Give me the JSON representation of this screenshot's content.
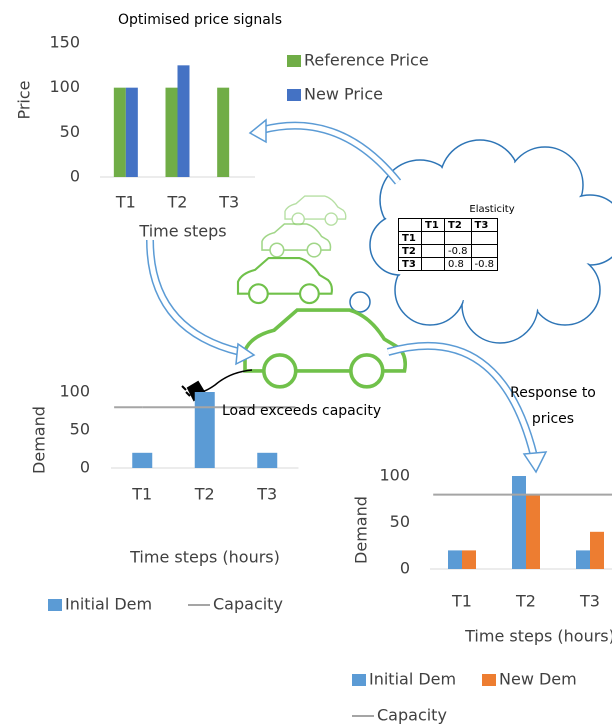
{
  "chart_data": [
    {
      "type": "bar",
      "title": "Optimised price signals",
      "y_label": "Price",
      "x_label": "Time steps",
      "categories": [
        "T1",
        "T2",
        "T3"
      ],
      "series": [
        {
          "name": "Reference Price",
          "color": "#70ad47",
          "values": [
            100,
            100,
            100
          ]
        },
        {
          "name": "New Price",
          "color": "#4472c4",
          "values": [
            100,
            125,
            null
          ]
        }
      ],
      "ylim": [
        0,
        150
      ],
      "yticks": [
        0,
        50,
        100,
        150
      ],
      "legend": "right"
    },
    {
      "type": "bar",
      "y_label": "Demand",
      "x_label": "Time steps (hours)",
      "categories": [
        "T1",
        "T2",
        "T3"
      ],
      "series": [
        {
          "name": "Initial Dem",
          "color": "#5b9bd5",
          "values": [
            20,
            100,
            20
          ]
        },
        {
          "name": "Capacity",
          "type": "line",
          "color": "#a5a5a5",
          "values": [
            80,
            80,
            80
          ]
        }
      ],
      "ylim": [
        0,
        100
      ],
      "yticks": [
        0,
        50,
        100
      ],
      "legend": "bottom"
    },
    {
      "type": "bar",
      "y_label": "Demand",
      "x_label": "Time steps (hours)",
      "categories": [
        "T1",
        "T2",
        "T3"
      ],
      "series": [
        {
          "name": "Initial Dem",
          "color": "#5b9bd5",
          "values": [
            20,
            100,
            20
          ]
        },
        {
          "name": "New Dem",
          "color": "#ed7d31",
          "values": [
            20,
            80,
            40
          ]
        },
        {
          "name": "Capacity",
          "type": "line",
          "color": "#a5a5a5",
          "values": [
            80,
            80,
            80
          ]
        }
      ],
      "ylim": [
        0,
        100
      ],
      "yticks": [
        0,
        50,
        100
      ],
      "legend": "bottom"
    }
  ],
  "elasticity_table": {
    "title": "Elasticity",
    "columns": [
      "T1",
      "T2",
      "T3"
    ],
    "rows": [
      {
        "label": "T1",
        "cells": [
          null,
          null,
          null
        ]
      },
      {
        "label": "T2",
        "cells": [
          null,
          -0.8,
          null
        ]
      },
      {
        "label": "T3",
        "cells": [
          null,
          0.8,
          -0.8
        ]
      }
    ]
  },
  "annotations": {
    "load": "Load exceeds capacity",
    "response": "Response to prices"
  }
}
